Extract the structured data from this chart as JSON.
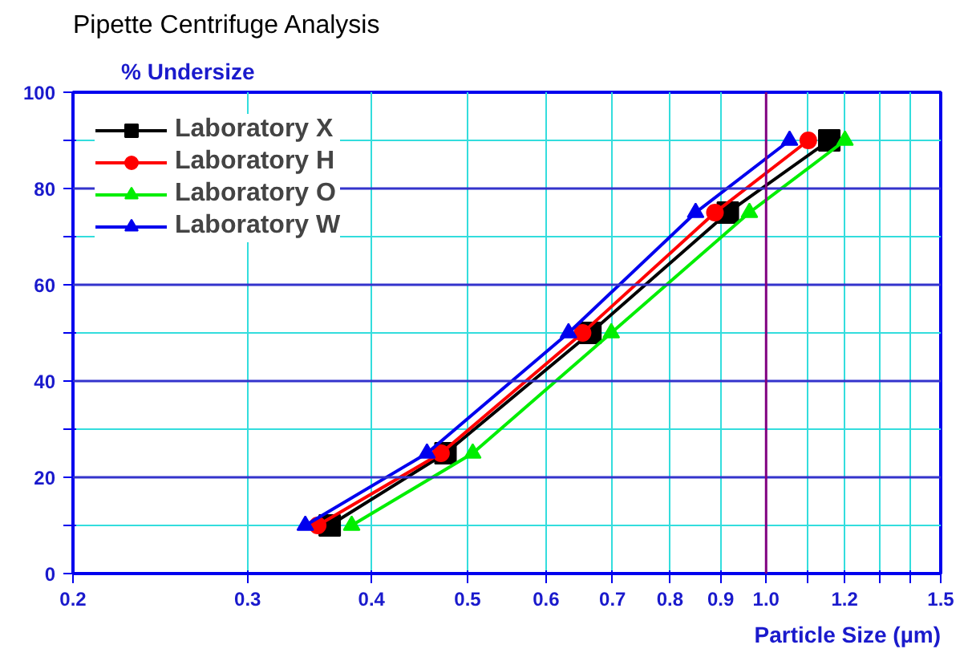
{
  "chart_data": {
    "type": "line",
    "title": "Pipette Centrifuge Analysis",
    "ylabel": "% Undersize",
    "xlabel": "Particle Size (µm)",
    "log": "x",
    "xlim": [
      0.2,
      1.5
    ],
    "ylim": [
      0,
      100
    ],
    "xticks": [
      0.2,
      0.3,
      0.4,
      0.5,
      0.6,
      0.7,
      0.8,
      0.9,
      {
        "value": 1.0,
        "label": "1.0"
      },
      {
        "value": 1.1,
        "label": null
      },
      1.2,
      {
        "value": 1.3,
        "label": null
      },
      {
        "value": 1.4,
        "label": null
      },
      1.5
    ],
    "yticks": [
      0,
      {
        "value": 10,
        "label": null
      },
      20,
      {
        "value": 30,
        "label": null
      },
      40,
      {
        "value": 50,
        "label": null
      },
      60,
      {
        "value": 70,
        "label": null
      },
      80,
      {
        "value": 90,
        "label": null
      },
      100
    ],
    "grid": true,
    "legend": "top left",
    "line_style": "solid",
    "ref_lines": [
      {
        "axis": "x",
        "value": 1.0,
        "color": "#800080"
      }
    ],
    "series": [
      {
        "name": "Laboratory X",
        "color": "#000000",
        "marker": "square",
        "x": [
          0.363,
          0.475,
          0.665,
          0.915,
          1.158
        ],
        "values": [
          10,
          25,
          50,
          75,
          90
        ]
      },
      {
        "name": "Laboratory H",
        "color": "#ff0000",
        "marker": "circle",
        "x": [
          0.353,
          0.47,
          0.653,
          0.888,
          1.103
        ],
        "values": [
          10,
          25,
          50,
          75,
          90
        ]
      },
      {
        "name": "Laboratory O",
        "color": "#00ee00",
        "marker": "triangle",
        "x": [
          0.382,
          0.506,
          0.698,
          0.962,
          1.201
        ],
        "values": [
          10,
          25,
          50,
          75,
          90
        ]
      },
      {
        "name": "Laboratory W",
        "color": "#0000ee",
        "marker": "triangle",
        "x": [
          0.343,
          0.455,
          0.632,
          0.849,
          1.056
        ],
        "values": [
          10,
          25,
          50,
          75,
          90
        ]
      }
    ]
  }
}
